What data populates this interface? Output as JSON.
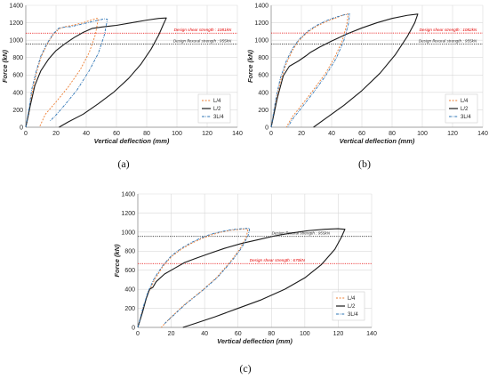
{
  "chart_data": [
    {
      "type": "line",
      "caption": "(a)",
      "xlabel": "Vertical deflection (mm)",
      "ylabel": "Force (kN)",
      "xlim": [
        0,
        140
      ],
      "ylim": [
        0,
        1400
      ],
      "xticks": [
        0,
        20,
        40,
        60,
        80,
        100,
        120,
        140
      ],
      "yticks": [
        0,
        200,
        400,
        600,
        800,
        1000,
        1200,
        1400
      ],
      "grid": true,
      "legend_position": "bottom-right",
      "reference_lines": [
        {
          "label": "Design shear strength : 1081kN",
          "value": 1081,
          "color": "#e60000"
        },
        {
          "label": "Design flexural strength : 955kN",
          "value": 955,
          "color": "#333333"
        }
      ],
      "series": [
        {
          "name": "L/4",
          "color": "#ed7d31",
          "dash": "2,1.6",
          "points": [
            [
              0,
              0
            ],
            [
              2,
              150
            ],
            [
              4,
              380
            ],
            [
              7,
              620
            ],
            [
              10,
              800
            ],
            [
              14,
              950
            ],
            [
              18,
              1060
            ],
            [
              22,
              1130
            ],
            [
              26,
              1155
            ],
            [
              32,
              1175
            ],
            [
              38,
              1200
            ],
            [
              44,
              1235
            ],
            [
              47,
              1250
            ],
            [
              48,
              1248
            ],
            [
              46,
              1060
            ],
            [
              42,
              860
            ],
            [
              36,
              660
            ],
            [
              28,
              460
            ],
            [
              20,
              290
            ],
            [
              13,
              150
            ],
            [
              9,
              0
            ]
          ]
        },
        {
          "name": "L/2",
          "color": "#1a1a1a",
          "dash": "",
          "points": [
            [
              0,
              0
            ],
            [
              3,
              250
            ],
            [
              6,
              480
            ],
            [
              10,
              650
            ],
            [
              15,
              780
            ],
            [
              20,
              880
            ],
            [
              26,
              960
            ],
            [
              32,
              1030
            ],
            [
              38,
              1090
            ],
            [
              44,
              1135
            ],
            [
              50,
              1150
            ],
            [
              60,
              1170
            ],
            [
              70,
              1200
            ],
            [
              80,
              1230
            ],
            [
              88,
              1250
            ],
            [
              93,
              1255
            ],
            [
              91,
              1180
            ],
            [
              88,
              1060
            ],
            [
              83,
              900
            ],
            [
              76,
              720
            ],
            [
              68,
              560
            ],
            [
              58,
              400
            ],
            [
              48,
              270
            ],
            [
              38,
              150
            ],
            [
              28,
              60
            ],
            [
              22,
              0
            ]
          ]
        },
        {
          "name": "3L/4",
          "color": "#2e75b6",
          "dash": "3,1.2,0.8,1.2",
          "points": [
            [
              0,
              0
            ],
            [
              2,
              200
            ],
            [
              4,
              440
            ],
            [
              7,
              650
            ],
            [
              10,
              820
            ],
            [
              14,
              960
            ],
            [
              18,
              1070
            ],
            [
              22,
              1140
            ],
            [
              26,
              1150
            ],
            [
              30,
              1155
            ],
            [
              36,
              1180
            ],
            [
              42,
              1205
            ],
            [
              48,
              1230
            ],
            [
              52,
              1245
            ],
            [
              54,
              1240
            ],
            [
              52,
              1060
            ],
            [
              48,
              850
            ],
            [
              42,
              650
            ],
            [
              34,
              430
            ],
            [
              26,
              260
            ],
            [
              20,
              140
            ],
            [
              16,
              70
            ]
          ]
        }
      ]
    },
    {
      "type": "line",
      "caption": "(b)",
      "xlabel": "Vertical deflection (mm)",
      "ylabel": "Force (kN)",
      "xlim": [
        0,
        140
      ],
      "ylim": [
        0,
        1400
      ],
      "xticks": [
        0,
        20,
        40,
        60,
        80,
        100,
        120,
        140
      ],
      "yticks": [
        0,
        200,
        400,
        600,
        800,
        1000,
        1200,
        1400
      ],
      "grid": true,
      "legend_position": "bottom-right",
      "reference_lines": [
        {
          "label": "Design shear strength : 1082kN",
          "value": 1082,
          "color": "#e60000"
        },
        {
          "label": "Design flexural strength : 955kN",
          "value": 955,
          "color": "#333333"
        }
      ],
      "series": [
        {
          "name": "L/4",
          "color": "#ed7d31",
          "dash": "2,1.6",
          "points": [
            [
              0,
              0
            ],
            [
              3,
              280
            ],
            [
              6,
              520
            ],
            [
              10,
              730
            ],
            [
              14,
              880
            ],
            [
              18,
              990
            ],
            [
              24,
              1090
            ],
            [
              30,
              1160
            ],
            [
              36,
              1210
            ],
            [
              42,
              1250
            ],
            [
              47,
              1285
            ],
            [
              50,
              1300
            ],
            [
              51,
              1300
            ],
            [
              50,
              1180
            ],
            [
              47,
              990
            ],
            [
              42,
              800
            ],
            [
              36,
              620
            ],
            [
              28,
              430
            ],
            [
              20,
              250
            ],
            [
              14,
              120
            ],
            [
              10,
              0
            ]
          ]
        },
        {
          "name": "L/2",
          "color": "#1a1a1a",
          "dash": "",
          "points": [
            [
              0,
              0
            ],
            [
              4,
              330
            ],
            [
              8,
              590
            ],
            [
              12,
              700
            ],
            [
              18,
              760
            ],
            [
              23,
              820
            ],
            [
              26,
              860
            ],
            [
              32,
              920
            ],
            [
              40,
              990
            ],
            [
              50,
              1070
            ],
            [
              60,
              1140
            ],
            [
              70,
              1200
            ],
            [
              80,
              1250
            ],
            [
              90,
              1285
            ],
            [
              97,
              1300
            ],
            [
              95,
              1200
            ],
            [
              90,
              1040
            ],
            [
              82,
              830
            ],
            [
              72,
              620
            ],
            [
              60,
              420
            ],
            [
              48,
              250
            ],
            [
              36,
              100
            ],
            [
              28,
              0
            ]
          ]
        },
        {
          "name": "3L/4",
          "color": "#2e75b6",
          "dash": "3,1.2,0.8,1.2",
          "points": [
            [
              0,
              0
            ],
            [
              3,
              320
            ],
            [
              6,
              560
            ],
            [
              10,
              760
            ],
            [
              14,
              900
            ],
            [
              18,
              1000
            ],
            [
              24,
              1100
            ],
            [
              30,
              1170
            ],
            [
              36,
              1220
            ],
            [
              42,
              1260
            ],
            [
              48,
              1290
            ],
            [
              52,
              1300
            ],
            [
              51,
              1180
            ],
            [
              48,
              990
            ],
            [
              43,
              790
            ],
            [
              36,
              590
            ],
            [
              28,
              400
            ],
            [
              20,
              220
            ],
            [
              14,
              90
            ],
            [
              11,
              0
            ]
          ]
        }
      ]
    },
    {
      "type": "line",
      "caption": "(c)",
      "xlabel": "Vertical deflection (mm)",
      "ylabel": "Force (kN)",
      "xlim": [
        0,
        140
      ],
      "ylim": [
        0,
        1400
      ],
      "xticks": [
        0,
        20,
        40,
        60,
        80,
        100,
        120,
        140
      ],
      "yticks": [
        0,
        200,
        400,
        600,
        800,
        1000,
        1200,
        1400
      ],
      "grid": true,
      "legend_position": "bottom-right",
      "reference_lines": [
        {
          "label": "Design flexural strength : 955kN",
          "value": 955,
          "color": "#333333"
        },
        {
          "label": "Design shear strength : 670kN",
          "value": 670,
          "color": "#e60000"
        }
      ],
      "series": [
        {
          "name": "L/4",
          "color": "#ed7d31",
          "dash": "2,1.6",
          "points": [
            [
              0,
              0
            ],
            [
              3,
              190
            ],
            [
              6,
              350
            ],
            [
              10,
              500
            ],
            [
              15,
              640
            ],
            [
              20,
              740
            ],
            [
              26,
              820
            ],
            [
              32,
              880
            ],
            [
              38,
              930
            ],
            [
              44,
              970
            ],
            [
              50,
              1000
            ],
            [
              56,
              1020
            ],
            [
              62,
              1030
            ],
            [
              66,
              1035
            ],
            [
              65,
              950
            ],
            [
              61,
              820
            ],
            [
              55,
              680
            ],
            [
              47,
              520
            ],
            [
              38,
              380
            ],
            [
              28,
              240
            ],
            [
              20,
              110
            ],
            [
              14,
              0
            ]
          ]
        },
        {
          "name": "L/2",
          "color": "#1a1a1a",
          "dash": "",
          "points": [
            [
              0,
              0
            ],
            [
              3,
              170
            ],
            [
              5,
              300
            ],
            [
              7,
              400
            ],
            [
              9,
              420
            ],
            [
              11,
              480
            ],
            [
              16,
              560
            ],
            [
              22,
              620
            ],
            [
              28,
              680
            ],
            [
              34,
              720
            ],
            [
              42,
              770
            ],
            [
              52,
              830
            ],
            [
              62,
              880
            ],
            [
              72,
              920
            ],
            [
              82,
              960
            ],
            [
              92,
              990
            ],
            [
              102,
              1015
            ],
            [
              112,
              1030
            ],
            [
              120,
              1035
            ],
            [
              124,
              1030
            ],
            [
              122,
              950
            ],
            [
              118,
              820
            ],
            [
              110,
              660
            ],
            [
              100,
              520
            ],
            [
              88,
              400
            ],
            [
              74,
              290
            ],
            [
              60,
              200
            ],
            [
              46,
              110
            ],
            [
              34,
              40
            ],
            [
              27,
              0
            ]
          ]
        },
        {
          "name": "3L/4",
          "color": "#2e75b6",
          "dash": "3,1.2,0.8,1.2",
          "points": [
            [
              0,
              0
            ],
            [
              3,
              200
            ],
            [
              6,
              370
            ],
            [
              10,
              520
            ],
            [
              15,
              650
            ],
            [
              20,
              750
            ],
            [
              26,
              830
            ],
            [
              32,
              890
            ],
            [
              38,
              940
            ],
            [
              44,
              980
            ],
            [
              50,
              1005
            ],
            [
              56,
              1025
            ],
            [
              62,
              1035
            ],
            [
              67,
              1040
            ],
            [
              66,
              960
            ],
            [
              62,
              830
            ],
            [
              56,
              690
            ],
            [
              48,
              530
            ],
            [
              39,
              390
            ],
            [
              29,
              250
            ],
            [
              21,
              120
            ],
            [
              16,
              40
            ]
          ]
        }
      ]
    }
  ]
}
